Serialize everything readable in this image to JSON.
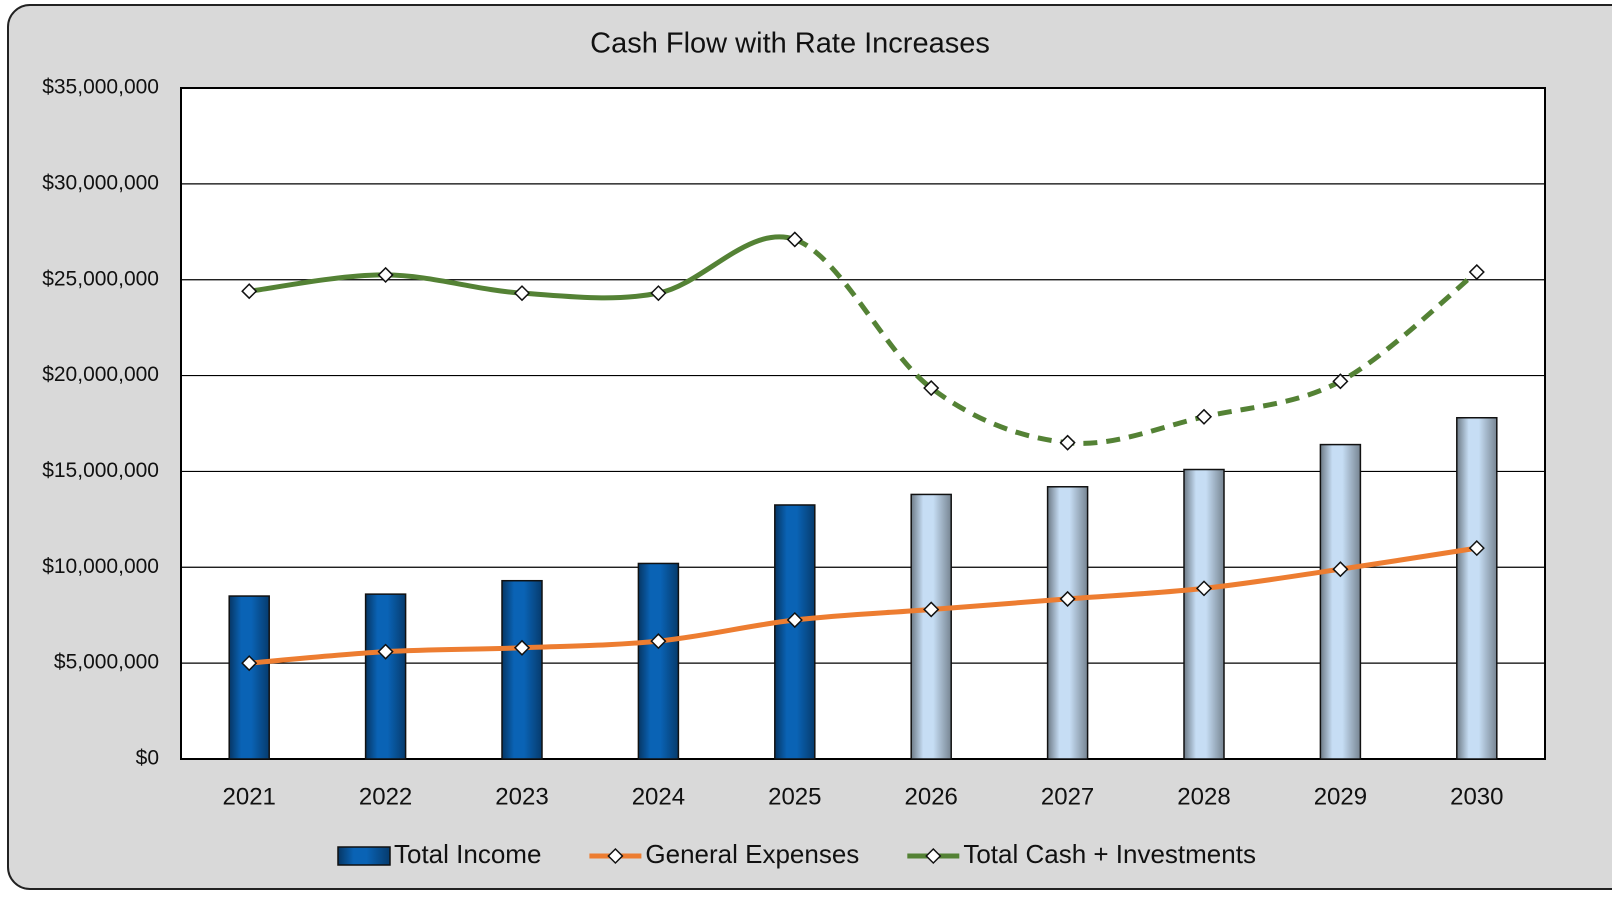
{
  "chart_data": {
    "type": "combo",
    "title": "Cash Flow with Rate Increases",
    "categories": [
      "2021",
      "2022",
      "2023",
      "2024",
      "2025",
      "2026",
      "2027",
      "2028",
      "2029",
      "2030"
    ],
    "series": [
      {
        "name": "Total Income",
        "kind": "bar",
        "color": "#0a63b5",
        "colors": [
          "#0a63b5",
          "#0a63b5",
          "#0a63b5",
          "#0a63b5",
          "#0a63b5",
          "#c6ddf4",
          "#c6ddf4",
          "#c6ddf4",
          "#c6ddf4",
          "#c6ddf4"
        ],
        "values": [
          8500000,
          8600000,
          9300000,
          10200000,
          13250000,
          13800000,
          14200000,
          15100000,
          16400000,
          17800000
        ]
      },
      {
        "name": "General Expenses",
        "kind": "line",
        "color": "#ed7d31",
        "styles": [
          "solid",
          "solid",
          "solid",
          "solid",
          "solid",
          "solid",
          "solid",
          "solid",
          "solid",
          "solid"
        ],
        "values": [
          5000000,
          5600000,
          5800000,
          6150000,
          7250000,
          7800000,
          8350000,
          8900000,
          9900000,
          11000000
        ]
      },
      {
        "name": "Total Cash + Investments",
        "kind": "line",
        "color": "#548235",
        "styles": [
          "solid",
          "solid",
          "solid",
          "solid",
          "solid",
          "dashed",
          "dashed",
          "dashed",
          "dashed",
          "dashed"
        ],
        "values": [
          24400000,
          25250000,
          24300000,
          24300000,
          27100000,
          19350000,
          16500000,
          17850000,
          19700000,
          25400000
        ]
      }
    ],
    "ylim": [
      0,
      35000000
    ],
    "yticks": [
      {
        "value": 0,
        "label": "$0"
      },
      {
        "value": 5000000,
        "label": "$5,000,000"
      },
      {
        "value": 10000000,
        "label": "$10,000,000"
      },
      {
        "value": 15000000,
        "label": "$15,000,000"
      },
      {
        "value": 20000000,
        "label": "$20,000,000"
      },
      {
        "value": 25000000,
        "label": "$25,000,000"
      },
      {
        "value": 30000000,
        "label": "$30,000,000"
      },
      {
        "value": 35000000,
        "label": "$35,000,000"
      }
    ],
    "grid": true,
    "smooth": true,
    "legend": "bottom"
  }
}
